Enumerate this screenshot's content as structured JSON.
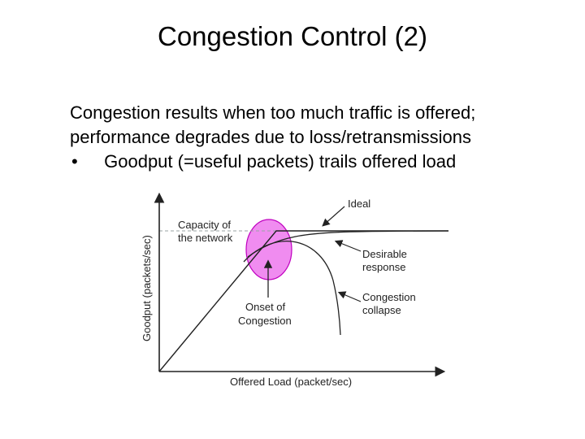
{
  "slide": {
    "title": "Congestion Control (2)",
    "body_lines": [
      "Congestion results when too much traffic is offered;",
      "performance degrades due to loss/retransmissions"
    ],
    "bullet_symbol": "•",
    "bullet_text": "Goodput (=useful packets) trails offered load"
  },
  "figure": {
    "ylabel": "Goodput (packets/sec)",
    "xlabel": "Offered Load (packet/sec)",
    "labels": {
      "capacity_line1": "Capacity of",
      "capacity_line2": "the network",
      "ideal": "Ideal",
      "desirable_line1": "Desirable",
      "desirable_line2": "response",
      "collapse_line1": "Congestion",
      "collapse_line2": "collapse",
      "onset_line1": "Onset of",
      "onset_line2": "Congestion"
    },
    "colors": {
      "highlight_fill": "#f08cf0",
      "highlight_stroke": "#c000c0",
      "curve": "#222222",
      "capacity_line": "#9aa6a6"
    }
  }
}
